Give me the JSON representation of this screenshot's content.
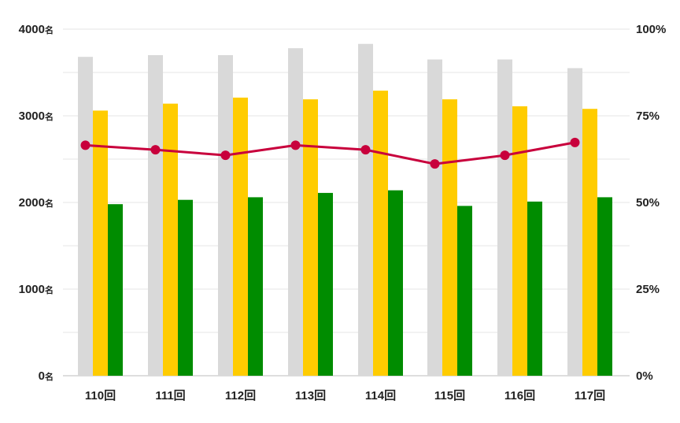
{
  "chart_data": {
    "type": "bar",
    "title": "",
    "xlabel": "",
    "ylabel": "",
    "categories": [
      "110回",
      "111回",
      "112回",
      "113回",
      "114回",
      "115回",
      "116回",
      "117回"
    ],
    "ylim": [
      0,
      4000
    ],
    "y_ticks": [
      0,
      1000,
      2000,
      3000,
      4000
    ],
    "y_tick_unit": "名",
    "y2lim": [
      0,
      100
    ],
    "y2_ticks": [
      "0%",
      "25%",
      "50%",
      "75%",
      "100%"
    ],
    "grid": true,
    "legend": "none",
    "series": [
      {
        "type": "bar",
        "color": "#d9d9d9",
        "values": [
          3680,
          3700,
          3700,
          3780,
          3830,
          3650,
          3650,
          3550
        ]
      },
      {
        "type": "bar",
        "color": "#ffcc00",
        "values": [
          3060,
          3140,
          3210,
          3190,
          3290,
          3190,
          3110,
          3080
        ]
      },
      {
        "type": "bar",
        "color": "#008c00",
        "values": [
          1980,
          2030,
          2060,
          2110,
          2140,
          1960,
          2010,
          2060
        ]
      },
      {
        "type": "line",
        "axis": "right",
        "color": "#c8003c",
        "values": [
          66.5,
          65.2,
          63.6,
          66.5,
          65.2,
          61.1,
          63.6,
          67.3
        ]
      }
    ]
  }
}
